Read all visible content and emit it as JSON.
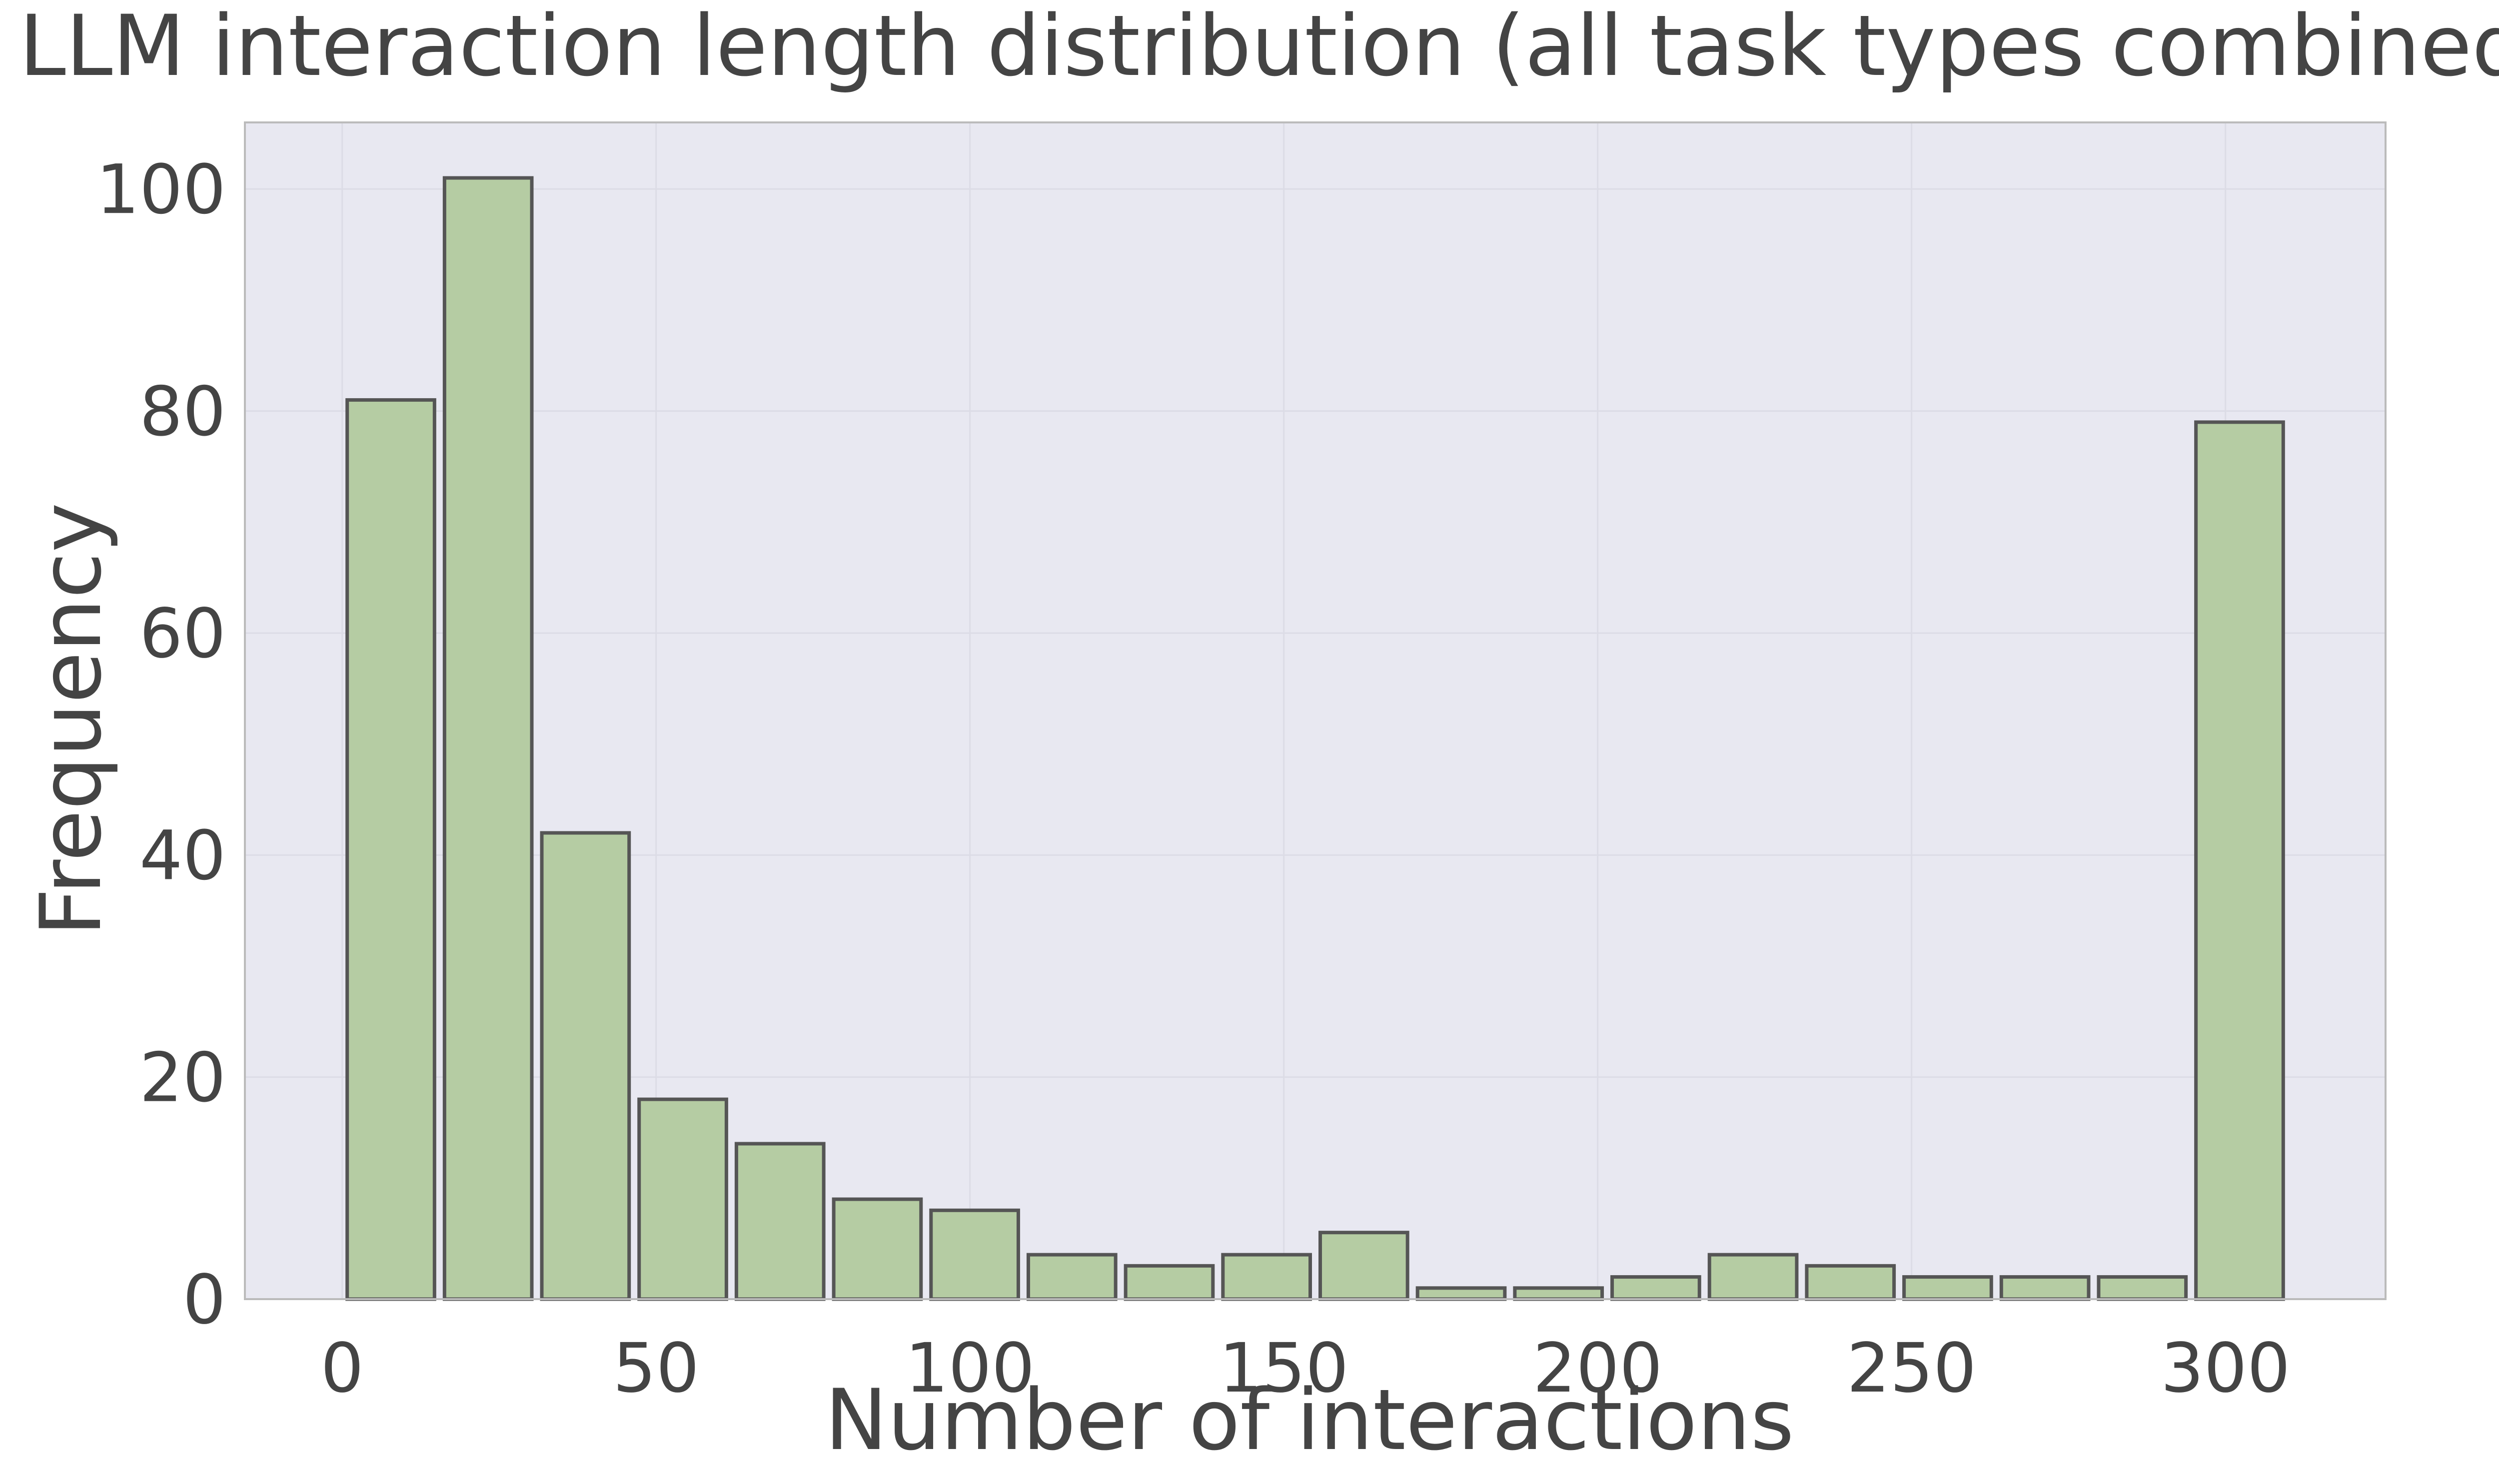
{
  "chart_data": {
    "type": "bar",
    "title": "LLM interaction length distribution (all task types combined)",
    "xlabel": "Number of interactions",
    "ylabel": "Frequency",
    "xlim": [
      -15.5,
      325.5
    ],
    "ylim": [
      0,
      106
    ],
    "xticks": [
      0,
      50,
      100,
      150,
      200,
      250,
      300
    ],
    "yticks": [
      0,
      20,
      40,
      60,
      80,
      100
    ],
    "bin_width": 15.5,
    "bins": [
      {
        "x0": 0,
        "value": 81
      },
      {
        "x0": 15.5,
        "value": 101
      },
      {
        "x0": 31,
        "value": 42
      },
      {
        "x0": 46.5,
        "value": 18
      },
      {
        "x0": 62,
        "value": 14
      },
      {
        "x0": 77.5,
        "value": 9
      },
      {
        "x0": 93,
        "value": 8
      },
      {
        "x0": 108.5,
        "value": 4
      },
      {
        "x0": 124,
        "value": 3
      },
      {
        "x0": 139.5,
        "value": 4
      },
      {
        "x0": 155,
        "value": 6
      },
      {
        "x0": 170.5,
        "value": 1
      },
      {
        "x0": 186,
        "value": 1
      },
      {
        "x0": 201.5,
        "value": 2
      },
      {
        "x0": 217,
        "value": 4
      },
      {
        "x0": 232.5,
        "value": 3
      },
      {
        "x0": 248,
        "value": 2
      },
      {
        "x0": 263.5,
        "value": 2
      },
      {
        "x0": 279,
        "value": 2
      },
      {
        "x0": 294.5,
        "value": 79
      }
    ],
    "grid": true,
    "colors": {
      "bar_fill": "#b5cca3",
      "bar_edge": "#555555",
      "plot_background": "#e8e8f1",
      "grid": "#dcdce6",
      "text": "#444444",
      "axes_edge": "#bbbbbb"
    }
  }
}
